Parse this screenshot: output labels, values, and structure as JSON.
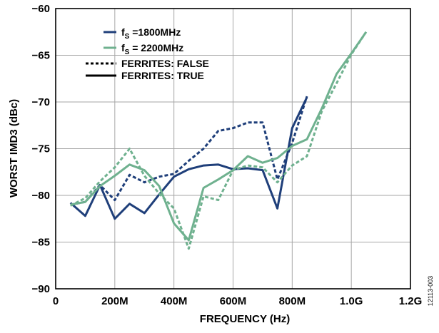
{
  "chart_data": {
    "type": "line",
    "xlabel": "FREQUENCY (Hz)",
    "ylabel": "WORST IMD3 (dBc)",
    "xlim": [
      0,
      1200
    ],
    "ylim": [
      -90,
      -60
    ],
    "x_ticks": [
      0,
      200,
      400,
      600,
      800,
      1000,
      1200
    ],
    "x_tick_labels": [
      "0",
      "200M",
      "400M",
      "600M",
      "800M",
      "1.0G",
      "1.2G"
    ],
    "y_ticks": [
      -90,
      -85,
      -80,
      -75,
      -70,
      -65,
      -60
    ],
    "y_tick_labels": [
      "−90",
      "−85",
      "−80",
      "−75",
      "−70",
      "−65",
      "−60"
    ],
    "grid": true,
    "legend_placement": "top-left",
    "legend": {
      "series": [
        {
          "prefix": "f",
          "subscript": "S",
          "text": " =1800MHz",
          "color": "#1f3f7a"
        },
        {
          "prefix": "f",
          "subscript": "S",
          "text": " = 2200MHz",
          "color": "#6fb18f"
        }
      ],
      "styles": [
        {
          "text": "FERRITES: FALSE",
          "dashed": true
        },
        {
          "text": "FERRITES: TRUE",
          "dashed": false
        }
      ]
    },
    "figure_id": "12113-003",
    "series": [
      {
        "color": "#1f3f7a",
        "dashed": false,
        "x": [
          50,
          100,
          150,
          200,
          250,
          300,
          350,
          400,
          450,
          500,
          550,
          600,
          650,
          700,
          750,
          800,
          850
        ],
        "values": [
          -80.8,
          -82.2,
          -78.9,
          -82.5,
          -80.9,
          -81.9,
          -79.9,
          -78.0,
          -77.2,
          -76.8,
          -76.7,
          -77.2,
          -77.1,
          -77.3,
          -81.4,
          -72.8,
          -69.5
        ]
      },
      {
        "color": "#1f3f7a",
        "dashed": true,
        "x": [
          50,
          100,
          150,
          200,
          250,
          300,
          350,
          400,
          450,
          500,
          550,
          600,
          650,
          700,
          750,
          800,
          850
        ],
        "values": [
          -81.0,
          -80.7,
          -78.9,
          -80.5,
          -77.8,
          -78.6,
          -78.0,
          -77.7,
          -76.3,
          -75.0,
          -73.1,
          -72.8,
          -72.2,
          -72.2,
          -78.3,
          -74.4,
          -69.4
        ]
      },
      {
        "color": "#6fb18f",
        "dashed": false,
        "x": [
          50,
          100,
          150,
          200,
          250,
          300,
          350,
          400,
          450,
          500,
          550,
          600,
          650,
          700,
          750,
          800,
          850,
          900,
          950,
          1000,
          1050
        ],
        "values": [
          -81.0,
          -80.7,
          -79.0,
          -77.9,
          -76.7,
          -77.3,
          -79.0,
          -83.0,
          -84.8,
          -79.2,
          -78.3,
          -77.3,
          -75.8,
          -76.5,
          -76.0,
          -74.7,
          -74.0,
          -70.7,
          -67.0,
          -64.8,
          -62.5
        ]
      },
      {
        "color": "#6fb18f",
        "dashed": true,
        "x": [
          50,
          100,
          150,
          200,
          250,
          300,
          350,
          400,
          450,
          500,
          550,
          600,
          650,
          700,
          750,
          800,
          850,
          900,
          950,
          1000,
          1050
        ],
        "values": [
          -81.1,
          -80.3,
          -78.5,
          -77.0,
          -75.0,
          -77.9,
          -79.8,
          -81.4,
          -85.7,
          -80.1,
          -80.5,
          -77.3,
          -76.8,
          -77.0,
          -78.6,
          -76.8,
          -75.8,
          -71.0,
          -68.0,
          -64.9,
          -62.5
        ]
      }
    ]
  }
}
